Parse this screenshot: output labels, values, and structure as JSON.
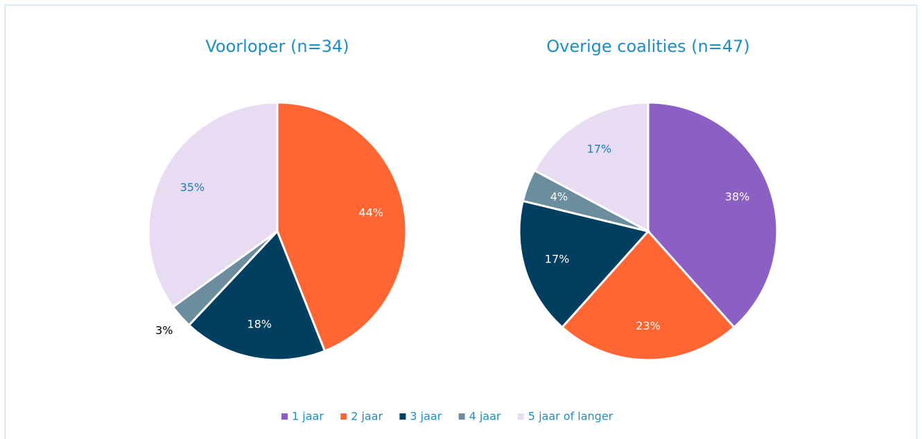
{
  "chart_data": [
    {
      "type": "pie",
      "title": "Voorloper (n=34)",
      "categories": [
        "1 jaar",
        "2 jaar",
        "3 jaar",
        "4 jaar",
        "5 jaar of langer"
      ],
      "values": [
        0,
        44,
        18,
        3,
        35
      ],
      "value_labels": [
        null,
        "44%",
        "18%",
        "3%",
        "35%"
      ],
      "colors": [
        "#8b5fc4",
        "#ff6633",
        "#003f5f",
        "#6b8d9e",
        "#e8dcf2"
      ]
    },
    {
      "type": "pie",
      "title": "Overige coalities (n=47)",
      "categories": [
        "1 jaar",
        "2 jaar",
        "3 jaar",
        "4 jaar",
        "5 jaar of langer"
      ],
      "values": [
        38,
        23,
        17,
        4,
        17
      ],
      "value_labels": [
        "38%",
        "23%",
        "17%",
        "4%",
        "17%"
      ],
      "colors": [
        "#8b5fc4",
        "#ff6633",
        "#003f5f",
        "#6b8d9e",
        "#e8dcf2"
      ]
    }
  ]
}
